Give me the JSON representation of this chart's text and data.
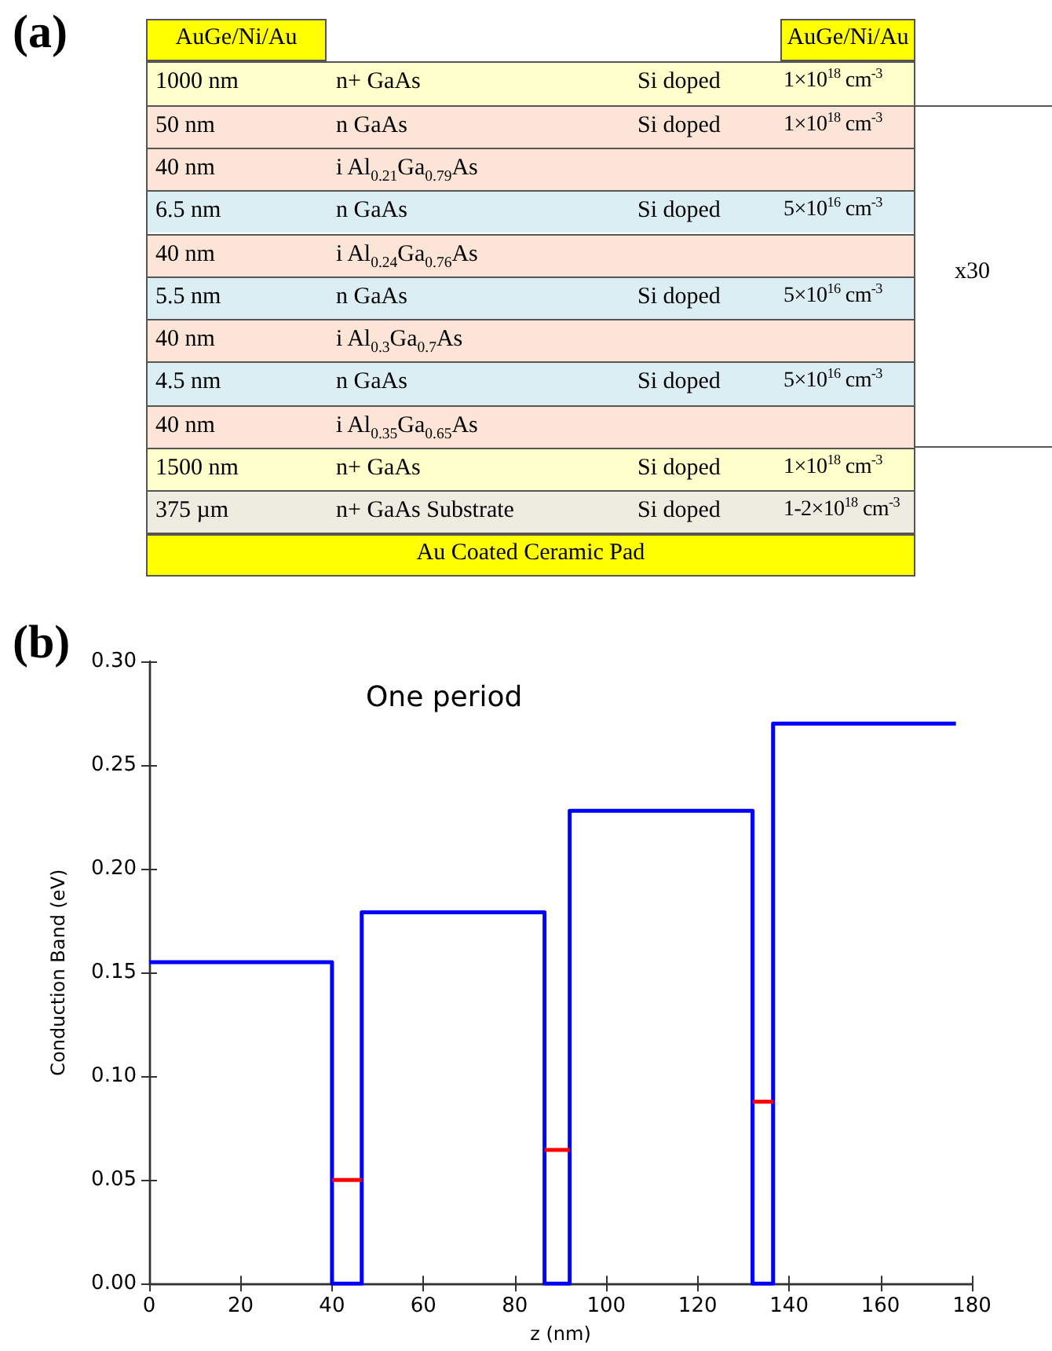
{
  "chart_data": [
    {
      "type": "other",
      "title": "(a)",
      "colors": [
        "#ffff00",
        "#ffffcc",
        "#fce4d6",
        "#fce4d6",
        "#dbeef4",
        "#fce4d6",
        "#dbeef4",
        "#fce4d6",
        "#dbeef4",
        "#fce4d6",
        "#ffffcc",
        "#eeece1",
        "#ffff00"
      ],
      "annotations": [
        "AuGe/Ni/Au",
        "AuGe/Ni/Au",
        "1000 nm",
        "n+ GaAs",
        "Si doped",
        "1×10$^{18}$ cm$^{-3}$",
        "50 nm",
        "n GaAs",
        "Si doped",
        "1×10$^{18}$ cm$^{-3}$",
        "40 nm",
        "i Al$_{0.21}$Ga$_{0.79}$As",
        null,
        null,
        "6.5 nm",
        "n GaAs",
        "Si doped",
        "5×10$^{16}$ cm$^{-3}$",
        "40 nm",
        "i Al$_{0.24}$Ga$_{0.76}$As",
        null,
        null,
        "5.5 nm",
        "n GaAs",
        "Si doped",
        "5×10$^{16}$ cm$^{-3}$",
        "40 nm",
        "i Al$_{0.3}$Ga$_{0.7}$As",
        null,
        null,
        "4.5 nm",
        "n GaAs",
        "Si doped",
        "5×10$^{16}$ cm$^{-3}$",
        "40 nm",
        "i Al$_{0.35}$Ga$_{0.65}$As",
        null,
        null,
        "1500 nm",
        "n+ GaAs",
        "Si doped",
        "1×10$^{18}$ cm$^{-3}$",
        "375 µm",
        "n+ GaAs Substrate",
        "Si doped",
        "1-2×10$^{18}$ cm$^{-3}$",
        "Au Coated Ceramic Pad",
        "x30"
      ]
    },
    {
      "type": "line",
      "title": "(b)",
      "xlabel": "z (nm)",
      "ylabel": "Conduction Band (eV)",
      "annotations": [
        "One period"
      ],
      "xlim": [
        0,
        180
      ],
      "xticks": [
        0,
        20,
        40,
        60,
        80,
        100,
        120,
        140,
        160,
        180
      ],
      "ylim": [
        0,
        0.3
      ],
      "yticks": [
        {
          "value": 0,
          "label": "0.00"
        },
        {
          "value": 0.05,
          "label": "0.05"
        },
        {
          "value": 0.1,
          "label": "0.10"
        },
        {
          "value": 0.15,
          "label": "0.15"
        },
        {
          "value": 0.2,
          "label": "0.20"
        },
        {
          "value": 0.25,
          "label": "0.25"
        },
        {
          "value": 0.3,
          "label": "0.30"
        }
      ],
      "grid": false,
      "series": [
        {
          "color": "#0000ff",
          "x": [
            0,
            40,
            40,
            46.5,
            46.5,
            86.5,
            86.5,
            92,
            92,
            132,
            132,
            136.5,
            136.5,
            176.5
          ],
          "values": [
            0.155,
            0.155,
            0,
            0,
            0.179,
            0.179,
            0,
            0,
            0.228,
            0.228,
            0,
            0,
            0.27,
            0.27
          ]
        },
        {
          "color": "#ff0000",
          "x": [
            40,
            46.5
          ],
          "values": [
            0.05,
            0.05
          ]
        },
        {
          "color": "#ff0000",
          "x": [
            86.5,
            92
          ],
          "values": [
            0.0645,
            0.0645
          ]
        },
        {
          "color": "#ff0000",
          "x": [
            132,
            136.5
          ],
          "values": [
            0.0877,
            0.0877
          ]
        }
      ]
    }
  ]
}
